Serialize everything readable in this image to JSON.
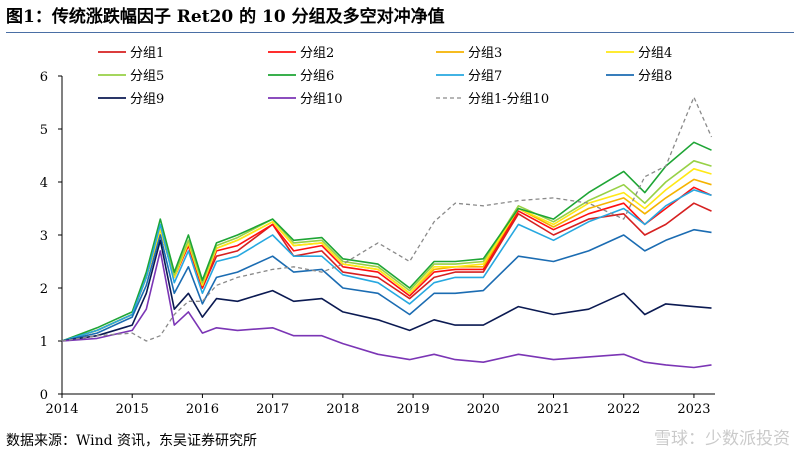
{
  "header": {
    "title": "图1：传统涨跌幅因子 Ret20 的 10 分组及多空对冲净值"
  },
  "footer": {
    "source": "数据来源：Wind 资讯，东吴证券研究所"
  },
  "watermark": {
    "text": "雪球：少数派投资"
  },
  "chart_data": {
    "type": "line",
    "title": "图1：传统涨跌幅因子 Ret20 的 10 分组及多空对冲净值",
    "xlabel": "",
    "ylabel": "",
    "x": [
      2014.0,
      2014.5,
      2015.0,
      2015.2,
      2015.4,
      2015.6,
      2015.8,
      2016.0,
      2016.2,
      2016.5,
      2017.0,
      2017.3,
      2017.7,
      2018.0,
      2018.5,
      2018.95,
      2019.3,
      2019.6,
      2020.0,
      2020.5,
      2021.0,
      2021.5,
      2022.0,
      2022.3,
      2022.6,
      2023.0,
      2023.25
    ],
    "xlim": [
      2014,
      2023.3
    ],
    "ylim": [
      0,
      6
    ],
    "xticks": [
      "2014",
      "2015",
      "2016",
      "2017",
      "2018",
      "2019",
      "2020",
      "2021",
      "2022",
      "2023"
    ],
    "xtick_values": [
      2014,
      2015,
      2016,
      2017,
      2018,
      2019,
      2020,
      2021,
      2022,
      2023
    ],
    "yticks": [
      0,
      1,
      2,
      3,
      4,
      5,
      6
    ],
    "grid": false,
    "legend": "top",
    "series": [
      {
        "name": "分组1",
        "color": "#d62020",
        "dash": "",
        "values": [
          1.0,
          1.2,
          1.5,
          2.2,
          3.1,
          2.2,
          2.8,
          2.0,
          2.6,
          2.7,
          3.2,
          2.6,
          2.7,
          2.3,
          2.2,
          1.8,
          2.2,
          2.3,
          2.3,
          3.4,
          3.0,
          3.3,
          3.4,
          3.0,
          3.2,
          3.6,
          3.45
        ]
      },
      {
        "name": "分组2",
        "color": "#ff1010",
        "dash": "",
        "values": [
          1.0,
          1.2,
          1.5,
          2.2,
          3.1,
          2.2,
          2.8,
          2.0,
          2.7,
          2.8,
          3.2,
          2.7,
          2.8,
          2.4,
          2.3,
          1.85,
          2.3,
          2.35,
          2.35,
          3.45,
          3.1,
          3.4,
          3.6,
          3.2,
          3.5,
          3.9,
          3.75
        ]
      },
      {
        "name": "分组3",
        "color": "#f5b300",
        "dash": "",
        "values": [
          1.0,
          1.2,
          1.5,
          2.2,
          3.1,
          2.2,
          2.85,
          2.05,
          2.75,
          2.9,
          3.25,
          2.8,
          2.85,
          2.45,
          2.35,
          1.9,
          2.35,
          2.4,
          2.4,
          3.5,
          3.15,
          3.5,
          3.7,
          3.4,
          3.7,
          4.05,
          3.95
        ]
      },
      {
        "name": "分组4",
        "color": "#ffe816",
        "dash": "",
        "values": [
          1.0,
          1.2,
          1.5,
          2.2,
          3.1,
          2.2,
          2.85,
          2.05,
          2.75,
          2.9,
          3.25,
          2.8,
          2.85,
          2.45,
          2.35,
          1.9,
          2.4,
          2.4,
          2.45,
          3.5,
          3.2,
          3.6,
          3.8,
          3.5,
          3.85,
          4.25,
          4.15
        ]
      },
      {
        "name": "分组5",
        "color": "#97d146",
        "dash": "",
        "values": [
          1.0,
          1.2,
          1.5,
          2.25,
          3.2,
          2.25,
          2.9,
          2.1,
          2.8,
          2.95,
          3.3,
          2.85,
          2.9,
          2.5,
          2.4,
          1.95,
          2.45,
          2.45,
          2.5,
          3.55,
          3.25,
          3.65,
          3.95,
          3.6,
          4.0,
          4.4,
          4.3
        ]
      },
      {
        "name": "分组6",
        "color": "#1ea535",
        "dash": "",
        "values": [
          1.0,
          1.25,
          1.55,
          2.3,
          3.3,
          2.3,
          3.0,
          2.15,
          2.85,
          3.0,
          3.3,
          2.9,
          2.95,
          2.55,
          2.45,
          2.0,
          2.5,
          2.5,
          2.55,
          3.5,
          3.3,
          3.8,
          4.2,
          3.8,
          4.3,
          4.75,
          4.6
        ]
      },
      {
        "name": "分组7",
        "color": "#27a8e0",
        "dash": "",
        "values": [
          1.0,
          1.2,
          1.5,
          2.2,
          3.2,
          2.1,
          2.7,
          1.9,
          2.5,
          2.6,
          3.0,
          2.6,
          2.6,
          2.25,
          2.1,
          1.7,
          2.1,
          2.2,
          2.2,
          3.2,
          2.9,
          3.25,
          3.5,
          3.2,
          3.55,
          3.85,
          3.75
        ]
      },
      {
        "name": "分组8",
        "color": "#1b6cb2",
        "dash": "",
        "values": [
          1.0,
          1.15,
          1.45,
          2.05,
          3.0,
          1.9,
          2.4,
          1.7,
          2.2,
          2.3,
          2.6,
          2.3,
          2.35,
          2.0,
          1.9,
          1.5,
          1.9,
          1.9,
          1.95,
          2.6,
          2.5,
          2.7,
          3.0,
          2.7,
          2.9,
          3.1,
          3.05
        ]
      },
      {
        "name": "分组9",
        "color": "#0b1a52",
        "dash": "",
        "values": [
          1.0,
          1.1,
          1.3,
          1.9,
          2.9,
          1.6,
          1.9,
          1.45,
          1.8,
          1.75,
          1.95,
          1.75,
          1.8,
          1.55,
          1.4,
          1.2,
          1.4,
          1.3,
          1.3,
          1.65,
          1.5,
          1.6,
          1.9,
          1.5,
          1.7,
          1.65,
          1.62
        ]
      },
      {
        "name": "分组10",
        "color": "#7b35b5",
        "dash": "",
        "values": [
          1.0,
          1.05,
          1.2,
          1.6,
          2.7,
          1.3,
          1.55,
          1.15,
          1.25,
          1.2,
          1.25,
          1.1,
          1.1,
          0.95,
          0.75,
          0.65,
          0.75,
          0.65,
          0.6,
          0.75,
          0.65,
          0.7,
          0.75,
          0.6,
          0.55,
          0.5,
          0.55
        ]
      },
      {
        "name": "分组1-分组10",
        "color": "#8a8a8a",
        "dash": "4,3",
        "values": [
          1.0,
          1.1,
          1.15,
          1.0,
          1.1,
          1.5,
          1.75,
          1.75,
          2.05,
          2.2,
          2.35,
          2.4,
          2.3,
          2.45,
          2.85,
          2.5,
          3.25,
          3.6,
          3.55,
          3.65,
          3.7,
          3.6,
          3.3,
          4.1,
          4.3,
          5.6,
          4.85
        ]
      }
    ]
  }
}
